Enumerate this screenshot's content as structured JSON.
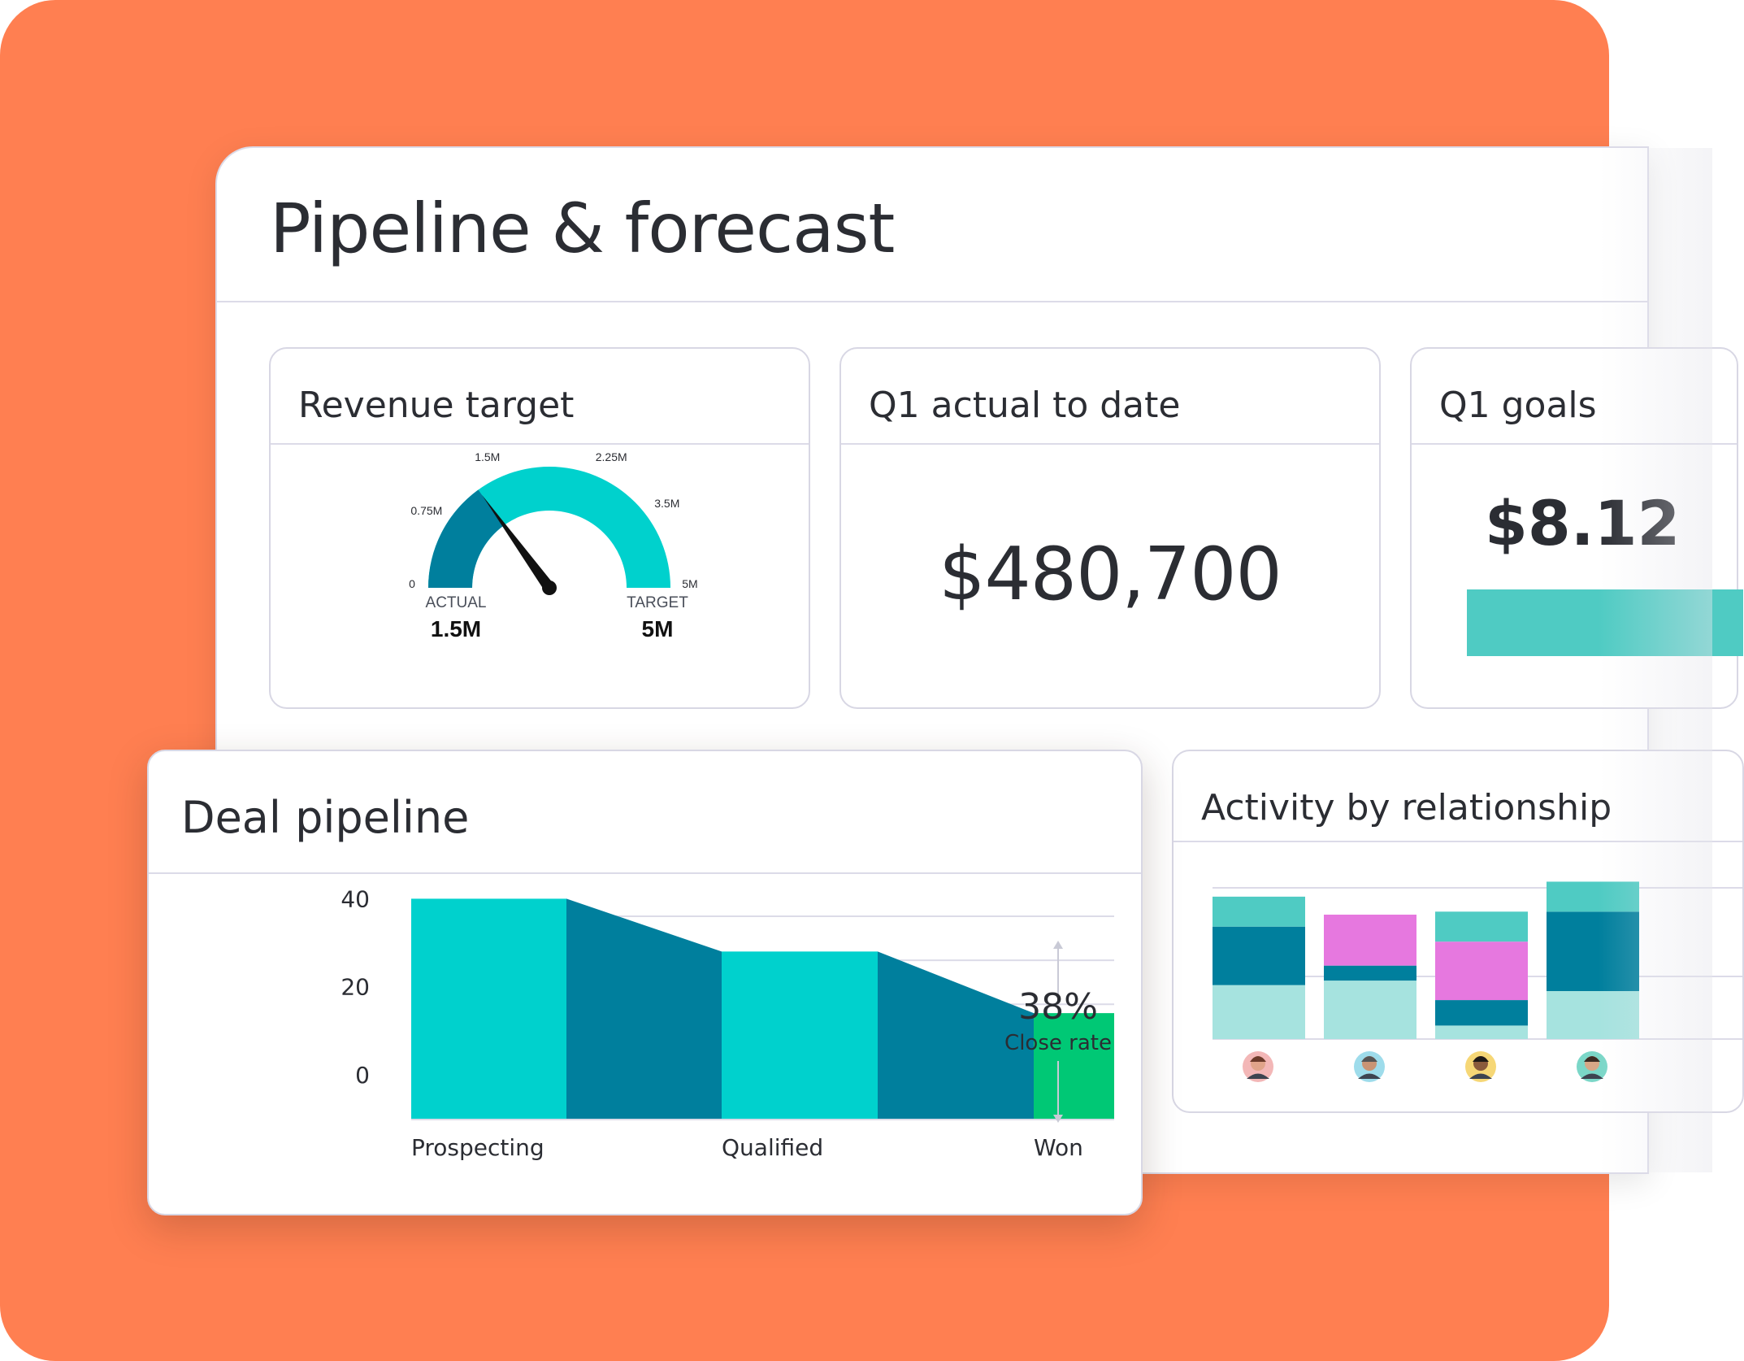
{
  "page": {
    "title": "Pipeline & forecast"
  },
  "colors": {
    "background": "#FF7F51",
    "teal_light": "#00D1CD",
    "teal_dark": "#007F9D",
    "mint": "#4FCBC3",
    "aqua_pale": "#A6E3DF",
    "magenta": "#E678DF",
    "green": "#00C875"
  },
  "revenue_target": {
    "title": "Revenue target",
    "scale_labels": [
      "0",
      "0.75M",
      "1.5M",
      "2.25M",
      "3.5M",
      "5M"
    ],
    "actual_label": "ACTUAL",
    "actual_value": "1.5M",
    "target_label": "TARGET",
    "target_value": "5M",
    "progress_fraction": 0.3
  },
  "q1_actual": {
    "title": "Q1 actual to date",
    "value": "$480,700"
  },
  "q1_goals": {
    "title": "Q1 goals",
    "value": "$8.12"
  },
  "activity": {
    "title": "Activity by relationship",
    "avatars": [
      "avatar-1",
      "avatar-2",
      "avatar-3",
      "avatar-4"
    ]
  },
  "deal_pipeline": {
    "title": "Deal pipeline",
    "close_rate_value": "38%",
    "close_rate_label": "Close rate"
  },
  "chart_data": [
    {
      "type": "bar",
      "categories": [
        "Prospecting",
        "Qualified",
        "Won"
      ],
      "values": [
        44,
        32,
        18
      ],
      "y_tick_labels": [
        "40",
        "20",
        "0"
      ],
      "ylim": [
        -6,
        45
      ],
      "grid": true
    },
    {
      "type": "bar",
      "stacked": true,
      "categories": [
        "avatar-1",
        "avatar-2",
        "avatar-3",
        "avatar-4"
      ],
      "series": [
        {
          "values": [
            36,
            39,
            9,
            32
          ]
        },
        {
          "values": [
            39,
            10,
            17,
            53
          ]
        },
        {
          "values": [
            0,
            34,
            39,
            0
          ]
        },
        {
          "values": [
            20,
            0,
            20,
            20
          ]
        }
      ],
      "ylim": [
        0,
        115
      ],
      "grid": true
    }
  ]
}
